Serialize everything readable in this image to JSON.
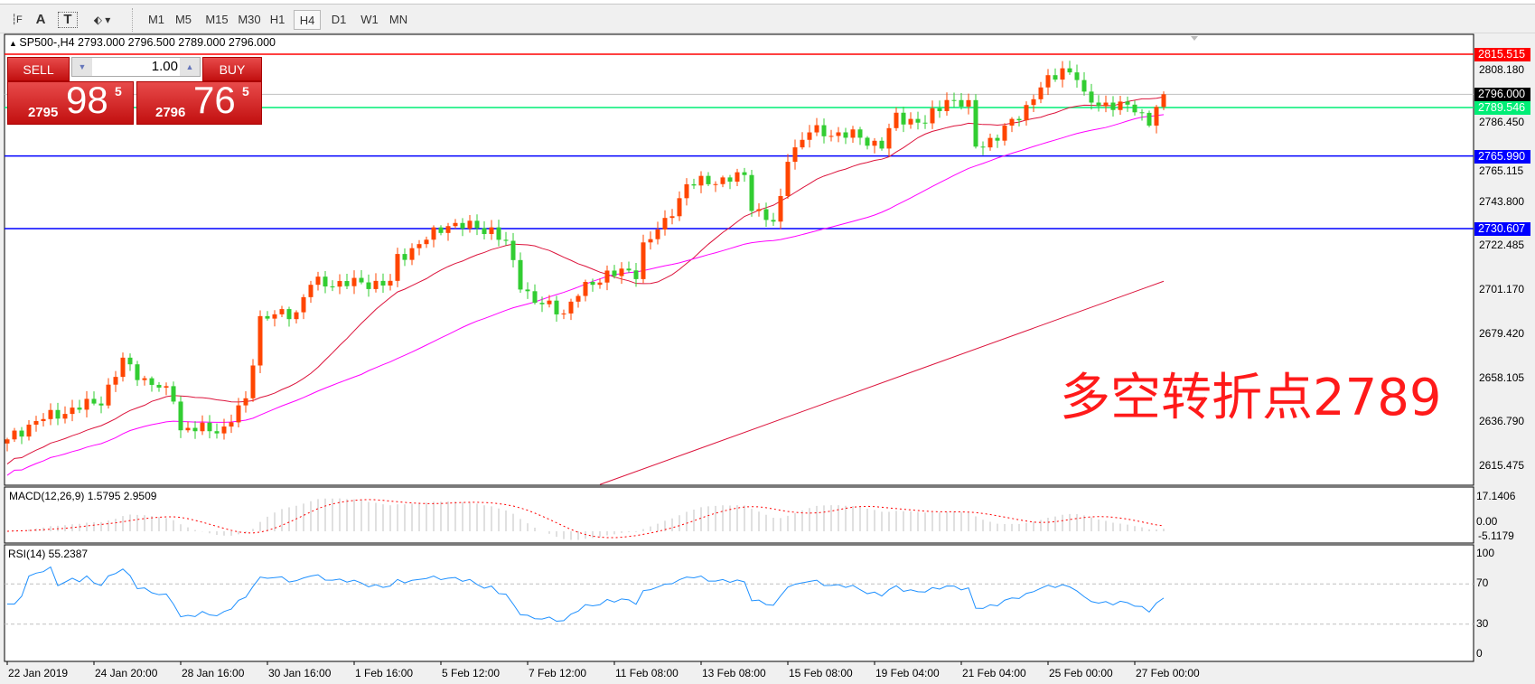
{
  "toolbar": {
    "icons": [
      "period-separator-icon",
      "text-label-icon",
      "text-box-icon",
      "arrows-icon"
    ],
    "timeframes": [
      "M1",
      "M5",
      "M15",
      "M30",
      "H1",
      "H4",
      "D1",
      "W1",
      "MN"
    ],
    "active_timeframe": "H4"
  },
  "chart": {
    "header": "SP500-,H4  2793.000 2796.500 2789.000 2796.000",
    "symbol": "SP500-",
    "timeframe": "H4",
    "ohlc": {
      "open": "2793.000",
      "high": "2796.500",
      "low": "2789.000",
      "close": "2796.000"
    },
    "annotation": "多空转折点2789",
    "annotation_color": "#ff1a1a",
    "bull_color": "#ff4500",
    "bear_color": "#32cd32"
  },
  "trade_panel": {
    "sell_label": "SELL",
    "buy_label": "BUY",
    "lot": "1.00",
    "sell_price": {
      "prefix": "2795",
      "big": "98",
      "sup": "5"
    },
    "buy_price": {
      "prefix": "2796",
      "big": "76",
      "sup": "5"
    }
  },
  "levels": [
    {
      "price": 2815.515,
      "label": "2815.515",
      "color": "#ff0000"
    },
    {
      "price": 2796.0,
      "label": "2796.000",
      "color": "#000000",
      "line": "#c0c0c0"
    },
    {
      "price": 2789.546,
      "label": "2789.546",
      "color": "#00ee76"
    },
    {
      "price": 2765.99,
      "label": "2765.990",
      "color": "#0000ff"
    },
    {
      "price": 2730.607,
      "label": "2730.607",
      "color": "#0000ff"
    }
  ],
  "price_axis": [
    "2808.180",
    "2786.450",
    "2765.115",
    "2743.800",
    "2722.485",
    "2701.170",
    "2679.420",
    "2658.105",
    "2636.790",
    "2615.475"
  ],
  "time_axis": [
    "22 Jan 2019",
    "24 Jan 20:00",
    "28 Jan 16:00",
    "30 Jan 16:00",
    "1 Feb 16:00",
    "5 Feb 12:00",
    "7 Feb 12:00",
    "11 Feb 08:00",
    "13 Feb 08:00",
    "15 Feb 08:00",
    "19 Feb 04:00",
    "21 Feb 04:00",
    "25 Feb 00:00",
    "27 Feb 00:00"
  ],
  "macd": {
    "label": "MACD(12,26,9) 1.5795 2.9509",
    "axis": [
      "17.1406",
      "0.00",
      "-5.1179"
    ]
  },
  "rsi": {
    "label": "RSI(14) 55.2387",
    "axis": [
      "100",
      "70",
      "30",
      "0"
    ]
  },
  "chart_data": {
    "type": "candlestick",
    "close_waypoints": [
      [
        0,
        2628
      ],
      [
        4,
        2637
      ],
      [
        13,
        2647
      ],
      [
        16,
        2666
      ],
      [
        19,
        2657
      ],
      [
        23,
        2649
      ],
      [
        24,
        2633
      ],
      [
        30,
        2633
      ],
      [
        33,
        2647
      ],
      [
        35,
        2687
      ],
      [
        40,
        2690
      ],
      [
        42,
        2704
      ],
      [
        47,
        2704
      ],
      [
        53,
        2704
      ],
      [
        54,
        2716
      ],
      [
        59,
        2728
      ],
      [
        61,
        2733
      ],
      [
        67,
        2730
      ],
      [
        69,
        2723
      ],
      [
        71,
        2704
      ],
      [
        73,
        2695
      ],
      [
        77,
        2690
      ],
      [
        79,
        2699
      ],
      [
        83,
        2709
      ],
      [
        87,
        2709
      ],
      [
        88,
        2723
      ],
      [
        91,
        2733
      ],
      [
        94,
        2752
      ],
      [
        98,
        2754
      ],
      [
        102,
        2756
      ],
      [
        103,
        2742
      ],
      [
        106,
        2733
      ],
      [
        107,
        2744
      ],
      [
        108,
        2766
      ],
      [
        111,
        2778
      ],
      [
        117,
        2776
      ],
      [
        121,
        2771
      ],
      [
        123,
        2785
      ],
      [
        127,
        2782
      ],
      [
        130,
        2794
      ],
      [
        133,
        2790
      ],
      [
        134,
        2771
      ],
      [
        137,
        2775
      ],
      [
        141,
        2790
      ],
      [
        143,
        2799
      ],
      [
        146,
        2809
      ],
      [
        148,
        2804
      ],
      [
        149,
        2794
      ],
      [
        153,
        2790
      ],
      [
        156,
        2790
      ],
      [
        158,
        2782
      ],
      [
        160,
        2796
      ]
    ],
    "ma_long": [
      [
        82,
        2606
      ],
      [
        160,
        2705
      ]
    ],
    "price_range": [
      2605,
      2825
    ]
  }
}
